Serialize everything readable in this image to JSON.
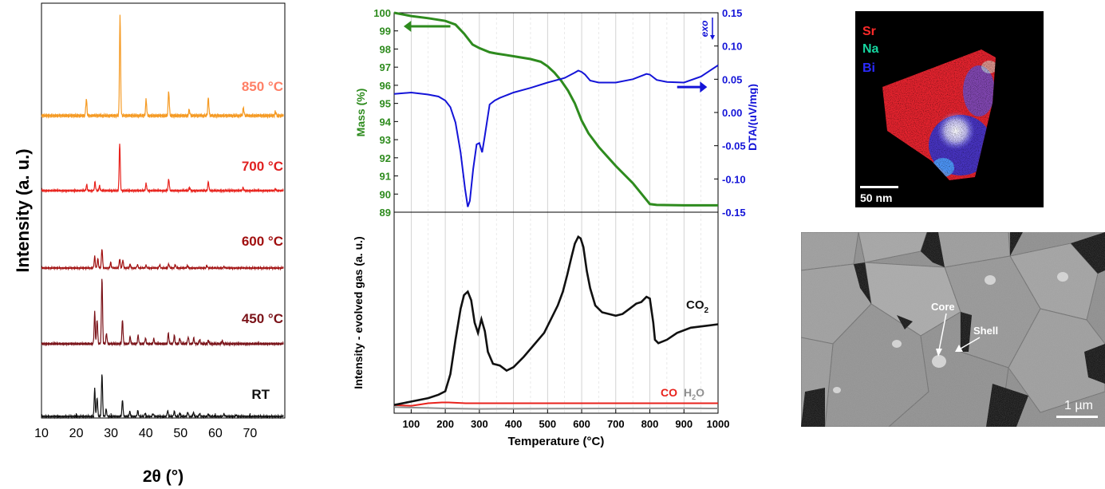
{
  "chart_data": [
    {
      "type": "line",
      "panel": "xrd",
      "xlabel": "2θ (°)",
      "ylabel": "Intensity (a. u.)",
      "xlim": [
        10,
        80
      ],
      "xticks": [
        10,
        20,
        30,
        40,
        50,
        60,
        70
      ],
      "series": [
        {
          "name": "850 °C",
          "color": "#f59a23",
          "label_color": "#ff7f66",
          "peaks": [
            [
              22.9,
              0.17
            ],
            [
              32.6,
              1.0
            ],
            [
              40.1,
              0.16
            ],
            [
              46.6,
              0.25
            ],
            [
              52.5,
              0.06
            ],
            [
              58.0,
              0.18
            ],
            [
              68.1,
              0.08
            ],
            [
              77.3,
              0.04
            ]
          ]
        },
        {
          "name": "700 °C",
          "color": "#e8221c",
          "label_color": "#e02020",
          "peaks": [
            [
              23.0,
              0.1
            ],
            [
              25.4,
              0.15
            ],
            [
              26.7,
              0.08
            ],
            [
              32.5,
              0.8
            ],
            [
              40.1,
              0.12
            ],
            [
              46.6,
              0.2
            ],
            [
              52.6,
              0.05
            ],
            [
              58.0,
              0.15
            ],
            [
              68.0,
              0.05
            ],
            [
              77.3,
              0.03
            ]
          ]
        },
        {
          "name": "600 °C",
          "color": "#a11010",
          "label_color": "#a11010",
          "peaks": [
            [
              25.3,
              0.25
            ],
            [
              26.2,
              0.2
            ],
            [
              27.4,
              0.42
            ],
            [
              29.9,
              0.12
            ],
            [
              32.5,
              0.2
            ],
            [
              33.4,
              0.18
            ],
            [
              35.5,
              0.08
            ],
            [
              37.6,
              0.07
            ],
            [
              40.1,
              0.06
            ],
            [
              44.0,
              0.07
            ],
            [
              46.6,
              0.09
            ],
            [
              48.5,
              0.07
            ],
            [
              52.0,
              0.05
            ],
            [
              57.6,
              0.05
            ],
            [
              62.5,
              0.03
            ]
          ]
        },
        {
          "name": "450 °C",
          "color": "#7a1218",
          "label_color": "#7a1218",
          "peaks": [
            [
              25.3,
              0.45
            ],
            [
              26.0,
              0.35
            ],
            [
              27.4,
              0.95
            ],
            [
              28.7,
              0.15
            ],
            [
              33.3,
              0.35
            ],
            [
              35.5,
              0.1
            ],
            [
              37.8,
              0.12
            ],
            [
              39.9,
              0.08
            ],
            [
              42.3,
              0.07
            ],
            [
              46.5,
              0.15
            ],
            [
              48.2,
              0.12
            ],
            [
              49.8,
              0.08
            ],
            [
              52.2,
              0.1
            ],
            [
              53.8,
              0.08
            ],
            [
              55.5,
              0.06
            ],
            [
              58.0,
              0.05
            ],
            [
              62.0,
              0.04
            ]
          ]
        },
        {
          "name": "RT",
          "color": "#111111",
          "label_color": "#111111",
          "peaks": [
            [
              25.3,
              0.58
            ],
            [
              26.0,
              0.4
            ],
            [
              27.4,
              0.9
            ],
            [
              28.6,
              0.15
            ],
            [
              33.3,
              0.35
            ],
            [
              35.4,
              0.1
            ],
            [
              37.7,
              0.12
            ],
            [
              39.8,
              0.07
            ],
            [
              42.1,
              0.06
            ],
            [
              46.3,
              0.12
            ],
            [
              48.2,
              0.11
            ],
            [
              49.8,
              0.07
            ],
            [
              52.1,
              0.09
            ],
            [
              53.7,
              0.08
            ],
            [
              55.5,
              0.06
            ],
            [
              58.0,
              0.05
            ],
            [
              62.5,
              0.05
            ],
            [
              66.0,
              0.03
            ]
          ]
        }
      ]
    },
    {
      "type": "line",
      "panel": "tga-dta",
      "xlabel": "Temperature (°C)",
      "ylabel_left": "Mass (%)",
      "ylabel_right": "DTA/(uV/mg)",
      "exo_label": "exo",
      "xlim": [
        50,
        1000
      ],
      "xticks": [
        100,
        200,
        300,
        400,
        500,
        600,
        700,
        800,
        900,
        1000
      ],
      "ylim_left": [
        89,
        100
      ],
      "yticks_left": [
        89,
        90,
        91,
        92,
        93,
        94,
        95,
        96,
        97,
        98,
        99,
        100
      ],
      "ylim_right": [
        -0.15,
        0.15
      ],
      "yticks_right": [
        "0.15",
        "0.10",
        "0.05",
        "0.00",
        "-0.05",
        "-0.10",
        "-0.15"
      ],
      "series": [
        {
          "name": "Mass",
          "color": "#2e8b1e",
          "x": [
            50,
            100,
            150,
            200,
            230,
            255,
            280,
            300,
            330,
            350,
            400,
            450,
            480,
            500,
            520,
            540,
            560,
            580,
            600,
            620,
            650,
            700,
            750,
            800,
            820,
            900,
            1000
          ],
          "y": [
            100,
            99.82,
            99.7,
            99.55,
            99.35,
            98.85,
            98.25,
            98.05,
            97.82,
            97.75,
            97.6,
            97.45,
            97.3,
            97.05,
            96.7,
            96.25,
            95.7,
            95.0,
            94.05,
            93.35,
            92.6,
            91.55,
            90.6,
            89.45,
            89.4,
            89.38,
            89.38
          ]
        },
        {
          "name": "DTA",
          "color": "#1414d8",
          "x": [
            50,
            100,
            150,
            180,
            200,
            215,
            230,
            245,
            258,
            266,
            272,
            282,
            292,
            300,
            308,
            315,
            330,
            345,
            360,
            400,
            450,
            500,
            550,
            580,
            590,
            600,
            610,
            625,
            650,
            700,
            750,
            790,
            800,
            820,
            850,
            900,
            950,
            1000
          ],
          "y": [
            0.028,
            0.03,
            0.027,
            0.024,
            0.018,
            0.008,
            -0.015,
            -0.06,
            -0.115,
            -0.142,
            -0.133,
            -0.085,
            -0.048,
            -0.046,
            -0.06,
            -0.038,
            0.012,
            0.018,
            0.022,
            0.03,
            0.037,
            0.045,
            0.052,
            0.06,
            0.063,
            0.061,
            0.057,
            0.048,
            0.045,
            0.045,
            0.05,
            0.058,
            0.057,
            0.049,
            0.046,
            0.045,
            0.054,
            0.071
          ]
        }
      ]
    },
    {
      "type": "line",
      "panel": "evolved-gas",
      "ylabel": "Intensity - evolved gas (a. u.)",
      "xlim": [
        50,
        1000
      ],
      "ylim": [
        0,
        1.05
      ],
      "series": [
        {
          "name": "CO",
          "label": "CO",
          "color": "#e8221c",
          "x": [
            50,
            100,
            150,
            190,
            210,
            260,
            1000
          ],
          "y": [
            0.02,
            0.015,
            0.03,
            0.035,
            0.035,
            0.03,
            0.03
          ]
        },
        {
          "name": "H2O",
          "label_main": "H",
          "label_sub": "2",
          "label_tail": "O",
          "color": "#909090",
          "x": [
            50,
            100,
            150,
            200,
            300,
            500,
            700,
            900,
            1000
          ],
          "y": [
            0.008,
            0.005,
            0.003,
            0.0,
            -0.003,
            -0.001,
            0.0,
            0.001,
            0.0
          ]
        },
        {
          "name": "CO2",
          "label_main": "CO",
          "label_sub": "2",
          "color": "#111111",
          "x": [
            50,
            100,
            150,
            180,
            200,
            215,
            230,
            245,
            255,
            266,
            276,
            286,
            296,
            306,
            316,
            325,
            340,
            360,
            380,
            400,
            430,
            460,
            490,
            510,
            530,
            545,
            558,
            570,
            580,
            590,
            597,
            605,
            615,
            625,
            640,
            660,
            680,
            700,
            720,
            740,
            760,
            775,
            790,
            800,
            810,
            815,
            825,
            850,
            880,
            920,
            960,
            1000
          ],
          "y": [
            0.02,
            0.04,
            0.06,
            0.08,
            0.1,
            0.2,
            0.4,
            0.58,
            0.66,
            0.68,
            0.63,
            0.5,
            0.44,
            0.52,
            0.45,
            0.33,
            0.26,
            0.25,
            0.22,
            0.24,
            0.3,
            0.37,
            0.44,
            0.52,
            0.6,
            0.68,
            0.78,
            0.88,
            0.96,
            1.0,
            0.99,
            0.94,
            0.8,
            0.7,
            0.6,
            0.56,
            0.55,
            0.54,
            0.55,
            0.58,
            0.61,
            0.62,
            0.65,
            0.64,
            0.5,
            0.4,
            0.38,
            0.4,
            0.44,
            0.47,
            0.48,
            0.49
          ]
        }
      ]
    }
  ],
  "edx": {
    "legend": [
      {
        "label": "Sr",
        "color": "#ff2a2a"
      },
      {
        "label": "Na",
        "color": "#16d6a0"
      },
      {
        "label": "Bi",
        "color": "#2b2bff"
      }
    ],
    "scale_bar": "50 nm"
  },
  "sem": {
    "core_label": "Core",
    "shell_label": "Shell",
    "scale_bar": "1 µm"
  }
}
